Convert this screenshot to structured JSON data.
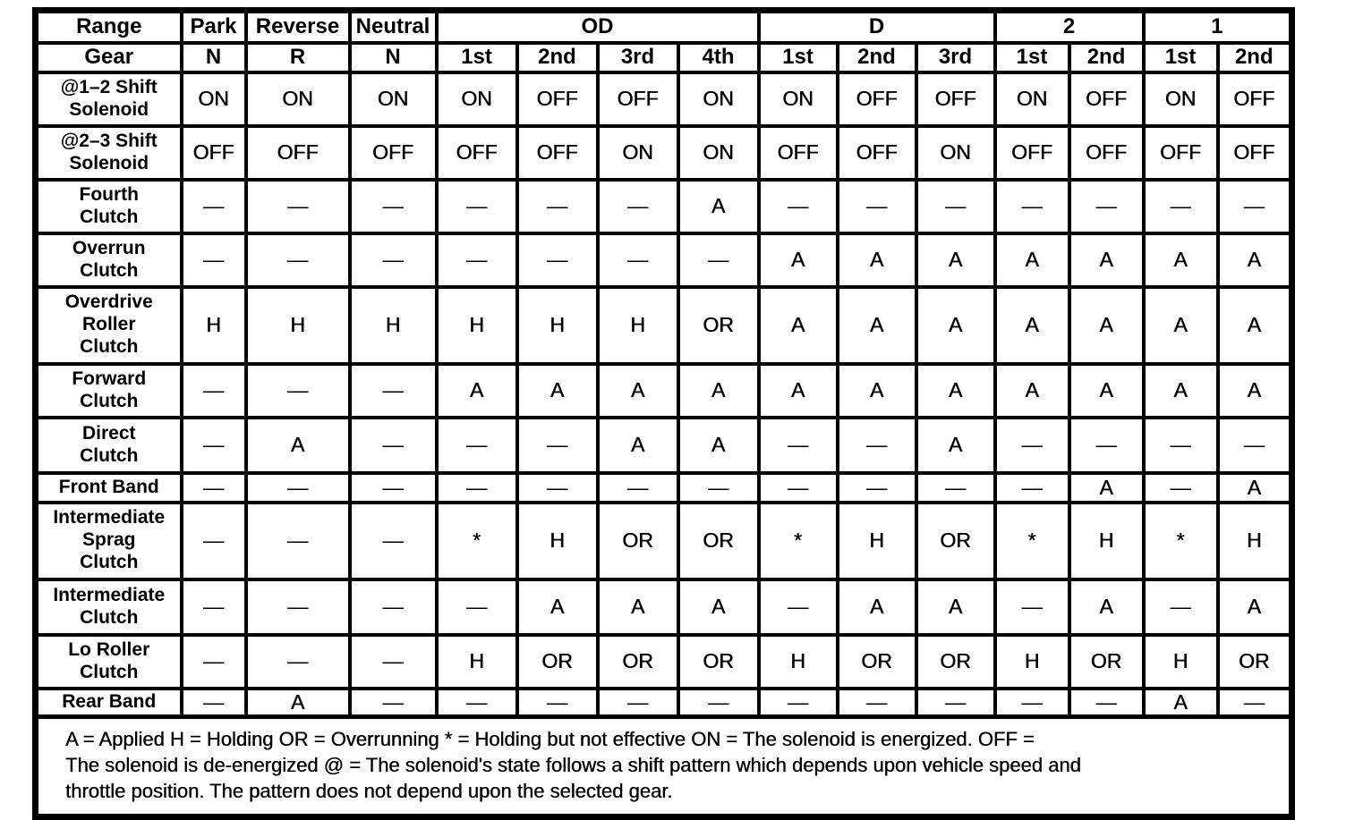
{
  "table": {
    "corner_label": "Range",
    "range_groups": [
      {
        "label": "Park",
        "span": 1
      },
      {
        "label": "Reverse",
        "span": 1
      },
      {
        "label": "Neutral",
        "span": 1
      },
      {
        "label": "OD",
        "span": 4
      },
      {
        "label": "D",
        "span": 3
      },
      {
        "label": "2",
        "span": 2
      },
      {
        "label": "1",
        "span": 2
      }
    ],
    "gear_label": "Gear",
    "gear_cells": [
      "N",
      "R",
      "N",
      "1st",
      "2nd",
      "3rd",
      "4th",
      "1st",
      "2nd",
      "3rd",
      "1st",
      "2nd",
      "1st",
      "2nd"
    ],
    "rows": [
      {
        "label": "@1–2 Shift Solenoid",
        "label_lines": [
          "@1–2 Shift",
          "Solenoid"
        ],
        "cells": [
          "ON",
          "ON",
          "ON",
          "ON",
          "OFF",
          "OFF",
          "ON",
          "ON",
          "OFF",
          "OFF",
          "ON",
          "OFF",
          "ON",
          "OFF"
        ]
      },
      {
        "label": "@2–3 Shift Solenoid",
        "label_lines": [
          "@2–3 Shift",
          "Solenoid"
        ],
        "cells": [
          "OFF",
          "OFF",
          "OFF",
          "OFF",
          "OFF",
          "ON",
          "ON",
          "OFF",
          "OFF",
          "ON",
          "OFF",
          "OFF",
          "OFF",
          "OFF"
        ]
      },
      {
        "label": "Fourth Clutch",
        "label_lines": [
          "Fourth",
          "Clutch"
        ],
        "cells": [
          "—",
          "—",
          "—",
          "—",
          "—",
          "—",
          "A",
          "—",
          "—",
          "—",
          "—",
          "—",
          "—",
          "—"
        ]
      },
      {
        "label": "Overrun Clutch",
        "label_lines": [
          "Overrun",
          "Clutch"
        ],
        "cells": [
          "—",
          "—",
          "—",
          "—",
          "—",
          "—",
          "—",
          "A",
          "A",
          "A",
          "A",
          "A",
          "A",
          "A"
        ]
      },
      {
        "label": "Overdrive Roller Clutch",
        "label_lines": [
          "Overdrive",
          "Roller",
          "Clutch"
        ],
        "cells": [
          "H",
          "H",
          "H",
          "H",
          "H",
          "H",
          "OR",
          "A",
          "A",
          "A",
          "A",
          "A",
          "A",
          "A"
        ]
      },
      {
        "label": "Forward Clutch",
        "label_lines": [
          "Forward",
          "Clutch"
        ],
        "cells": [
          "—",
          "—",
          "—",
          "A",
          "A",
          "A",
          "A",
          "A",
          "A",
          "A",
          "A",
          "A",
          "A",
          "A"
        ]
      },
      {
        "label": "Direct Clutch",
        "label_lines": [
          "Direct",
          "Clutch"
        ],
        "cells": [
          "—",
          "A",
          "—",
          "—",
          "—",
          "A",
          "A",
          "—",
          "—",
          "A",
          "—",
          "—",
          "—",
          "—"
        ]
      },
      {
        "label": "Front Band",
        "label_lines": [
          "Front Band"
        ],
        "cells": [
          "—",
          "—",
          "—",
          "—",
          "—",
          "—",
          "—",
          "—",
          "—",
          "—",
          "—",
          "A",
          "—",
          "A"
        ]
      },
      {
        "label": "Intermediate Sprag Clutch",
        "label_lines": [
          "Intermediate",
          "Sprag",
          "Clutch"
        ],
        "cells": [
          "—",
          "—",
          "—",
          "*",
          "H",
          "OR",
          "OR",
          "*",
          "H",
          "OR",
          "*",
          "H",
          "*",
          "H"
        ]
      },
      {
        "label": "Intermediate Clutch",
        "label_lines": [
          "Intermediate",
          "Clutch"
        ],
        "cells": [
          "—",
          "—",
          "—",
          "—",
          "A",
          "A",
          "A",
          "—",
          "A",
          "A",
          "—",
          "A",
          "—",
          "A"
        ]
      },
      {
        "label": "Lo Roller Clutch",
        "label_lines": [
          "Lo Roller",
          "Clutch"
        ],
        "cells": [
          "—",
          "—",
          "—",
          "H",
          "OR",
          "OR",
          "OR",
          "H",
          "OR",
          "OR",
          "H",
          "OR",
          "H",
          "OR"
        ]
      },
      {
        "label": "Rear Band",
        "label_lines": [
          "Rear Band"
        ],
        "cells": [
          "—",
          "A",
          "—",
          "—",
          "—",
          "—",
          "—",
          "—",
          "—",
          "—",
          "—",
          "—",
          "A",
          "—"
        ]
      }
    ],
    "legend_lines": [
      "A = Applied H = Holding OR = Overrunning * = Holding but not effective ON = The solenoid is energized. OFF =",
      "The solenoid is de-energized @ = The solenoid's state follows a shift pattern which depends upon vehicle speed and",
      "throttle position. The pattern does not depend upon the selected gear."
    ],
    "ink_color": "#000000",
    "paper_color": "#ffffff"
  }
}
